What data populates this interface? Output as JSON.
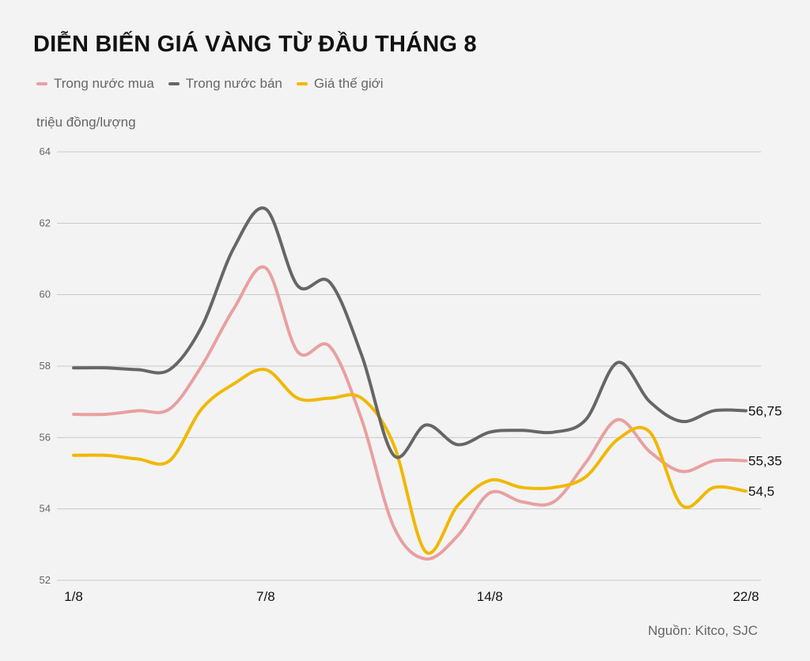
{
  "chart_data": {
    "type": "line",
    "title": "DIỄN BIẾN GIÁ VÀNG TỪ ĐẦU THÁNG 8",
    "ylabel": "triệu đồng/lượng",
    "xlabel": "",
    "source": "Nguồn: Kitco, SJC",
    "ylim": [
      52,
      64
    ],
    "yticks": [
      52,
      54,
      56,
      58,
      60,
      62,
      64
    ],
    "grid": true,
    "legend_position": "top-left",
    "x": [
      "1/8",
      "2/8",
      "3/8",
      "4/8",
      "5/8",
      "6/8",
      "7/8",
      "8/8",
      "9/8",
      "10/8",
      "11/8",
      "12/8",
      "13/8",
      "14/8",
      "15/8",
      "16/8",
      "17/8",
      "18/8",
      "19/8",
      "20/8",
      "21/8",
      "22/8"
    ],
    "xtick_labels": [
      {
        "index": 0,
        "label": "1/8"
      },
      {
        "index": 6,
        "label": "7/8"
      },
      {
        "index": 13,
        "label": "14/8"
      },
      {
        "index": 21,
        "label": "22/8"
      }
    ],
    "series": [
      {
        "name": "Trong nước mua",
        "color": "#e8a0a0",
        "values": [
          56.65,
          56.65,
          56.75,
          56.8,
          58.0,
          59.6,
          60.75,
          58.4,
          58.55,
          56.5,
          53.5,
          52.6,
          53.25,
          54.45,
          54.2,
          54.2,
          55.3,
          56.5,
          55.6,
          55.05,
          55.35,
          55.35
        ],
        "end_label": "55,35"
      },
      {
        "name": "Trong nước bán",
        "color": "#666666",
        "values": [
          57.95,
          57.95,
          57.9,
          57.9,
          59.1,
          61.3,
          62.4,
          60.25,
          60.35,
          58.3,
          55.5,
          56.35,
          55.8,
          56.15,
          56.2,
          56.15,
          56.5,
          58.1,
          57.0,
          56.45,
          56.75,
          56.75
        ],
        "end_label": "56,75"
      },
      {
        "name": "Giá thế giới",
        "color": "#f0b800",
        "values": [
          55.5,
          55.5,
          55.4,
          55.35,
          56.8,
          57.5,
          57.9,
          57.1,
          57.1,
          57.1,
          55.8,
          52.8,
          54.1,
          54.8,
          54.6,
          54.6,
          54.9,
          55.95,
          56.15,
          54.1,
          54.6,
          54.5
        ],
        "end_label": "54,5"
      }
    ]
  }
}
